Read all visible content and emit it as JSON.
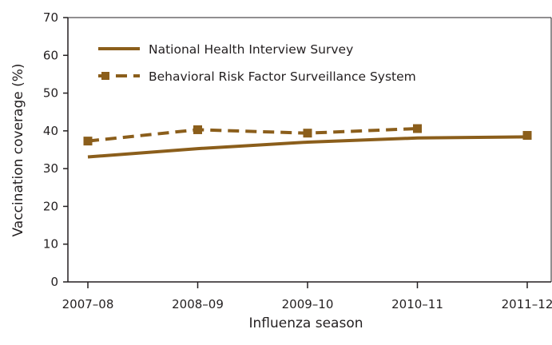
{
  "colors": {
    "series": "#8b5e1b",
    "axis": "#231f20",
    "background": "#ffffff"
  },
  "chart_data": {
    "type": "line",
    "title": "",
    "xlabel": "Influenza season",
    "ylabel": "Vaccination coverage (%)",
    "categories": [
      "2007–08",
      "2008–09",
      "2009–10",
      "2010–11",
      "2011–12"
    ],
    "ylim": [
      0,
      70
    ],
    "yticks": [
      0,
      10,
      20,
      30,
      40,
      50,
      60,
      70
    ],
    "grid": false,
    "legend_position": "top-left",
    "series": [
      {
        "name": "National Health Interview Survey",
        "style": "solid",
        "marker": "none",
        "values": [
          33.1,
          35.3,
          37.0,
          38.1,
          38.4
        ]
      },
      {
        "name": "Behavioral Risk Factor Surveillance System",
        "style": "dashed",
        "marker": "square",
        "values": [
          37.3,
          40.3,
          39.4,
          40.6,
          null
        ]
      }
    ],
    "end_marker": {
      "category_index": 4,
      "value": 38.8
    }
  }
}
